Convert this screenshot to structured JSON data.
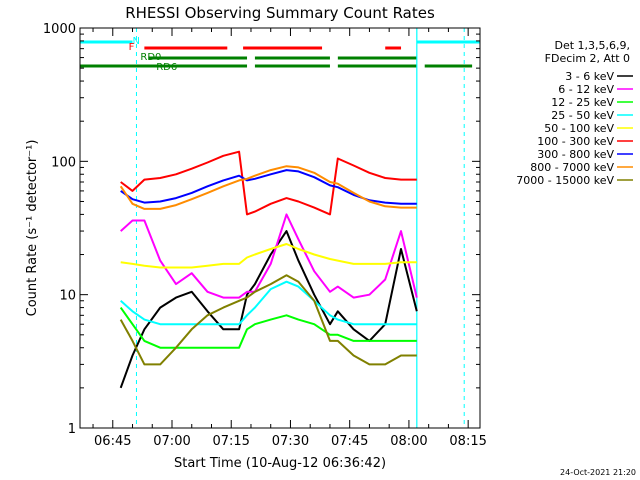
{
  "chart_data": {
    "type": "line",
    "title": "RHESSI Observing Summary Count Rates",
    "xlabel": "Start Time (10-Aug-12 06:36:42)",
    "ylabel": "Count Rate (s⁻¹ detector⁻¹)",
    "y_scale": "log",
    "ylim": [
      1,
      1000
    ],
    "xlim": [
      "06:36:42",
      "08:18:00"
    ],
    "x_ticks": [
      "06:45",
      "07:00",
      "07:15",
      "07:30",
      "07:45",
      "08:00",
      "08:15"
    ],
    "y_ticks": [
      "1",
      "10",
      "100",
      "1000"
    ],
    "legend_position": "right",
    "legend_header": [
      "Det 1,3,5,6,9,",
      "FDecim 2, Att 0"
    ],
    "timestamp": "24-Oct-2021 21:20",
    "flag_labels": {
      "night": "N",
      "flare": "F",
      "rd0": "RD0",
      "rd6": "RD6"
    },
    "flags": {
      "night": [
        [
          "06:36:42",
          "06:50:00"
        ],
        [
          "08:02:00",
          "08:18:00"
        ]
      ],
      "flare": [
        [
          "06:53:00",
          "07:14:00"
        ],
        [
          "07:18:00",
          "07:38:00"
        ],
        [
          "07:54:00",
          "07:58:00"
        ]
      ],
      "rd0": [
        [
          "06:54:00",
          "07:19:00"
        ],
        [
          "07:21:00",
          "07:40:00"
        ],
        [
          "07:42:00",
          "08:02:00"
        ]
      ],
      "rd6": [
        [
          "06:36:42",
          "07:19:00"
        ],
        [
          "07:21:00",
          "07:40:00"
        ],
        [
          "07:42:00",
          "08:02:00"
        ],
        [
          "08:04:00",
          "08:16:00"
        ]
      ]
    },
    "night_lines": {
      "solid": [
        "08:02:00"
      ],
      "dashed": [
        "06:51:00",
        "08:14:00"
      ]
    },
    "x": [
      "06:47",
      "06:50",
      "06:53",
      "06:57",
      "07:01",
      "07:05",
      "07:09",
      "07:13",
      "07:17",
      "07:19",
      "07:21",
      "07:25",
      "07:29",
      "07:32",
      "07:36",
      "07:40",
      "07:42",
      "07:46",
      "07:50",
      "07:54",
      "07:58",
      "08:02"
    ],
    "series": [
      {
        "name": "3 - 6 keV",
        "color": "#000000",
        "values": [
          2.0,
          3.5,
          5.5,
          8.0,
          9.5,
          10.5,
          7.5,
          5.5,
          5.5,
          10.0,
          12.0,
          20.0,
          30.0,
          18.0,
          10.0,
          6.0,
          7.5,
          5.5,
          4.5,
          6.0,
          22.0,
          7.5
        ]
      },
      {
        "name": "6 - 12 keV",
        "color": "#ff00ff",
        "values": [
          30.0,
          36.0,
          36.0,
          18.0,
          12.0,
          14.5,
          10.5,
          9.5,
          9.5,
          10.5,
          10.5,
          17.0,
          40.0,
          26.0,
          15.0,
          10.5,
          11.5,
          9.5,
          10.0,
          13.0,
          30.0,
          9.5
        ]
      },
      {
        "name": "12 - 25 keV",
        "color": "#00ff00",
        "values": [
          8.0,
          6.0,
          4.5,
          4.0,
          4.0,
          4.0,
          4.0,
          4.0,
          4.0,
          5.5,
          6.0,
          6.5,
          7.0,
          6.5,
          6.0,
          5.0,
          5.0,
          4.5,
          4.5,
          4.5,
          4.5,
          4.5
        ]
      },
      {
        "name": "25 - 50 keV",
        "color": "#00ffff",
        "values": [
          9.0,
          7.5,
          6.5,
          6.0,
          6.0,
          6.0,
          6.0,
          6.0,
          6.0,
          7.0,
          8.0,
          11.0,
          12.5,
          11.5,
          9.0,
          7.0,
          6.5,
          6.0,
          6.0,
          6.0,
          6.0,
          6.0
        ]
      },
      {
        "name": "50 - 100 keV",
        "color": "#ffff00",
        "values": [
          17.5,
          17.0,
          16.5,
          16.0,
          16.0,
          16.0,
          16.5,
          17.0,
          17.0,
          19.0,
          20.0,
          22.0,
          24.0,
          22.0,
          20.0,
          18.5,
          18.0,
          17.0,
          17.0,
          17.0,
          17.5,
          17.5
        ]
      },
      {
        "name": "100 - 300 keV",
        "color": "#ff0000",
        "values": [
          70.0,
          60.0,
          73.0,
          75.0,
          80.0,
          88.0,
          98.0,
          110.0,
          118.0,
          40.0,
          42.0,
          48.0,
          53.0,
          50.0,
          45.0,
          40.0,
          105.0,
          93.0,
          82.0,
          75.0,
          73.0,
          73.0
        ]
      },
      {
        "name": "300 - 800 keV",
        "color": "#0000ff",
        "values": [
          60.0,
          52.0,
          49.0,
          50.0,
          53.0,
          58.0,
          65.0,
          72.0,
          78.0,
          72.0,
          74.0,
          80.0,
          86.0,
          84.0,
          76.0,
          66.0,
          64.0,
          56.0,
          51.0,
          49.0,
          48.0,
          48.0
        ]
      },
      {
        "name": "800 - 7000 keV",
        "color": "#ff8c00",
        "values": [
          65.0,
          48.0,
          44.0,
          44.0,
          47.0,
          52.0,
          58.0,
          65.0,
          72.0,
          74.0,
          78.0,
          86.0,
          92.0,
          90.0,
          82.0,
          70.0,
          68.0,
          58.0,
          50.0,
          46.0,
          45.0,
          45.0
        ]
      },
      {
        "name": "7000 - 15000 keV",
        "color": "#808000",
        "values": [
          6.5,
          4.5,
          3.0,
          3.0,
          4.0,
          5.5,
          7.0,
          8.0,
          9.0,
          9.5,
          10.5,
          12.0,
          14.0,
          12.5,
          9.0,
          4.5,
          4.5,
          3.5,
          3.0,
          3.0,
          3.5,
          3.5
        ]
      }
    ]
  }
}
